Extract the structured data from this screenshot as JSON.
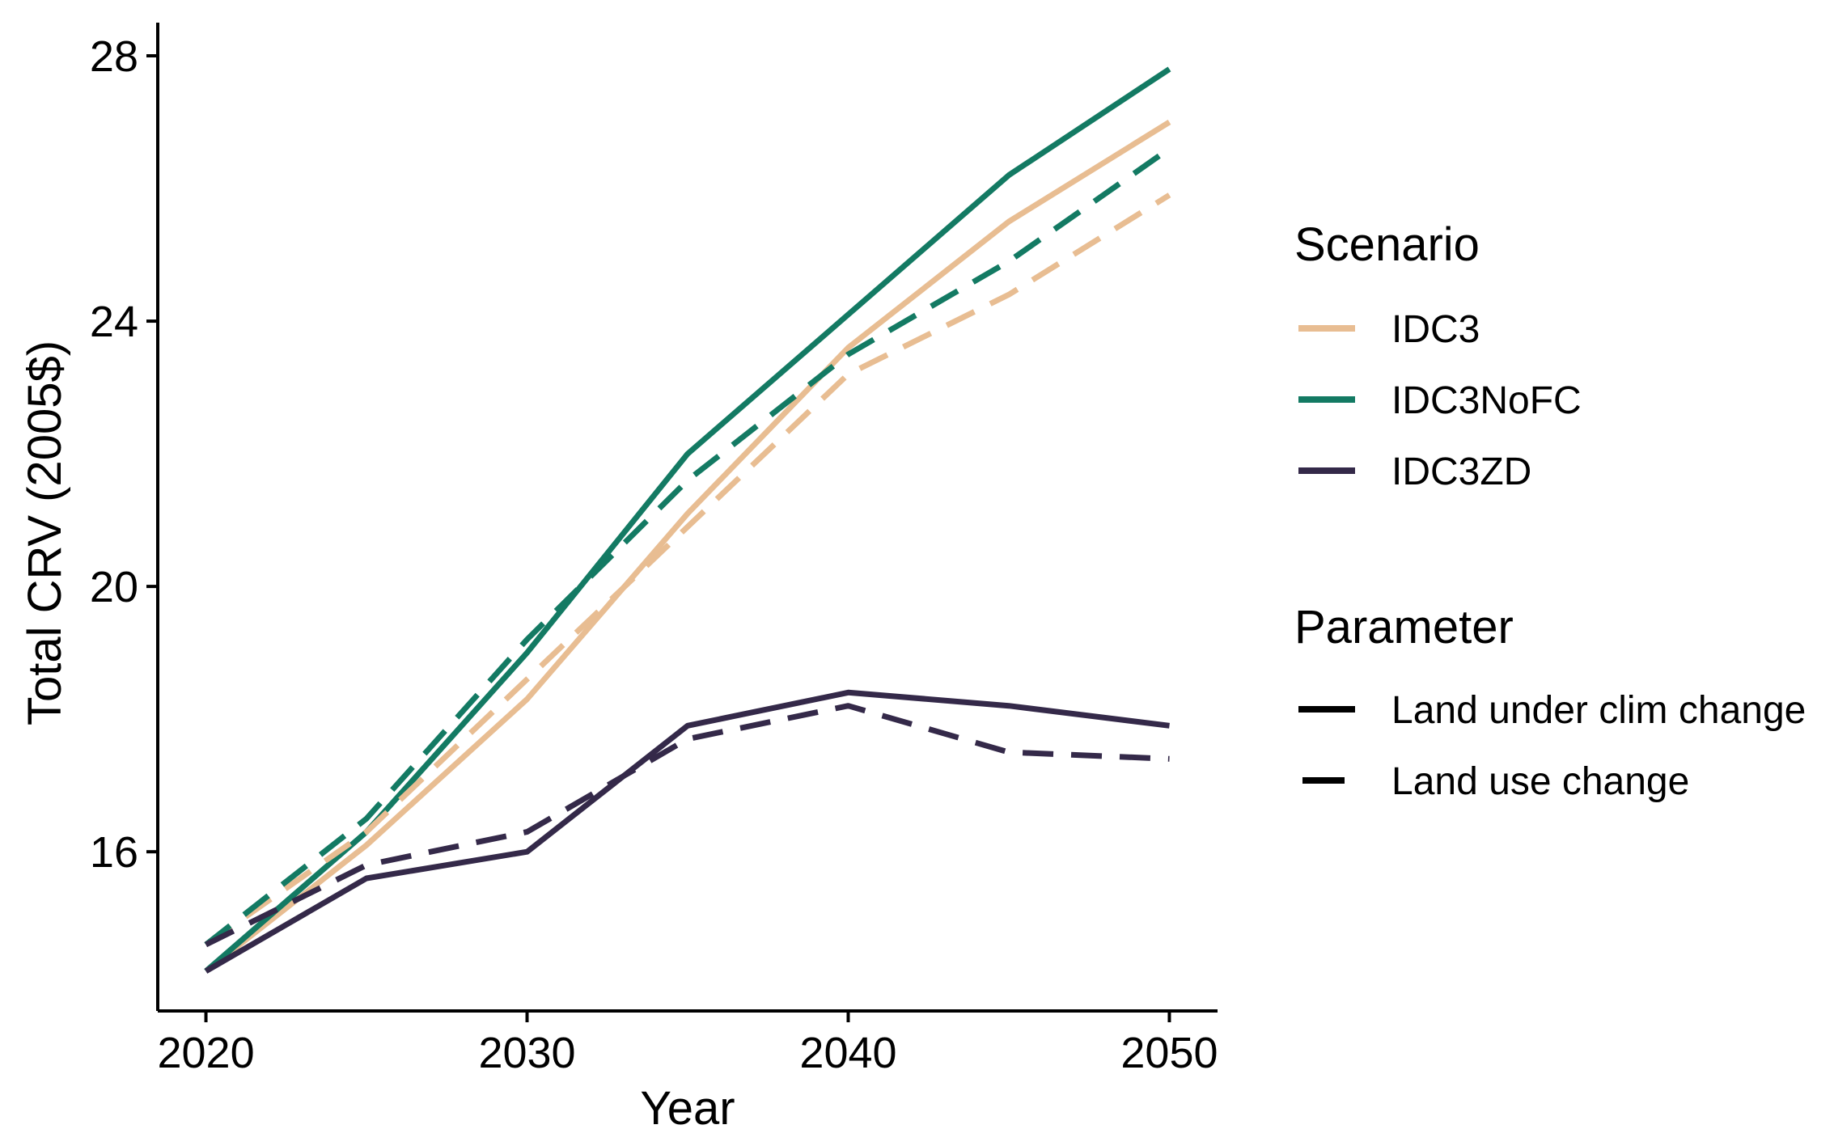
{
  "chart_data": {
    "type": "line",
    "xlabel": "Year",
    "ylabel": "Total CRV (2005$)",
    "xlim": [
      2018.5,
      2051.5
    ],
    "ylim": [
      13.6,
      28.5
    ],
    "x_ticks": [
      2020,
      2030,
      2040,
      2050
    ],
    "y_ticks": [
      16,
      20,
      24,
      28
    ],
    "x_tick_labels": [
      "2020",
      "2030",
      "2040",
      "2050"
    ],
    "y_tick_labels": [
      "16",
      "20",
      "24",
      "28"
    ],
    "grid": false,
    "x": [
      2020,
      2025,
      2030,
      2035,
      2040,
      2045,
      2050
    ],
    "series": [
      {
        "name": "IDC3",
        "parameter": "Land under clim change",
        "color": "#E8BD92",
        "values": [
          14.2,
          16.1,
          18.3,
          21.1,
          23.6,
          25.5,
          27.0
        ]
      },
      {
        "name": "IDC3",
        "parameter": "Land use change",
        "color": "#E8BD92",
        "values": [
          14.6,
          16.3,
          18.6,
          20.9,
          23.2,
          24.4,
          25.9
        ]
      },
      {
        "name": "IDC3NoFC",
        "parameter": "Land under clim change",
        "color": "#137A63",
        "values": [
          14.2,
          16.3,
          19.0,
          22.0,
          24.1,
          26.2,
          27.8
        ]
      },
      {
        "name": "IDC3NoFC",
        "parameter": "Land use change",
        "color": "#137A63",
        "values": [
          14.6,
          16.5,
          19.2,
          21.6,
          23.5,
          24.9,
          26.6
        ]
      },
      {
        "name": "IDC3ZD",
        "parameter": "Land under clim change",
        "color": "#342949",
        "values": [
          14.2,
          15.6,
          16.0,
          17.9,
          18.4,
          18.2,
          17.9
        ]
      },
      {
        "name": "IDC3ZD",
        "parameter": "Land use change",
        "color": "#342949",
        "values": [
          14.6,
          15.8,
          16.3,
          17.7,
          18.2,
          17.5,
          17.4
        ]
      }
    ],
    "legend": {
      "placement": "right",
      "scenario_title": "Scenario",
      "scenario_items": [
        {
          "label": "IDC3",
          "color": "#E8BD92"
        },
        {
          "label": "IDC3NoFC",
          "color": "#137A63"
        },
        {
          "label": "IDC3ZD",
          "color": "#342949"
        }
      ],
      "parameter_title": "Parameter",
      "parameter_items": [
        {
          "label": "Land under clim change",
          "style": "solid"
        },
        {
          "label": "Land use change",
          "style": "dashed"
        }
      ]
    }
  }
}
